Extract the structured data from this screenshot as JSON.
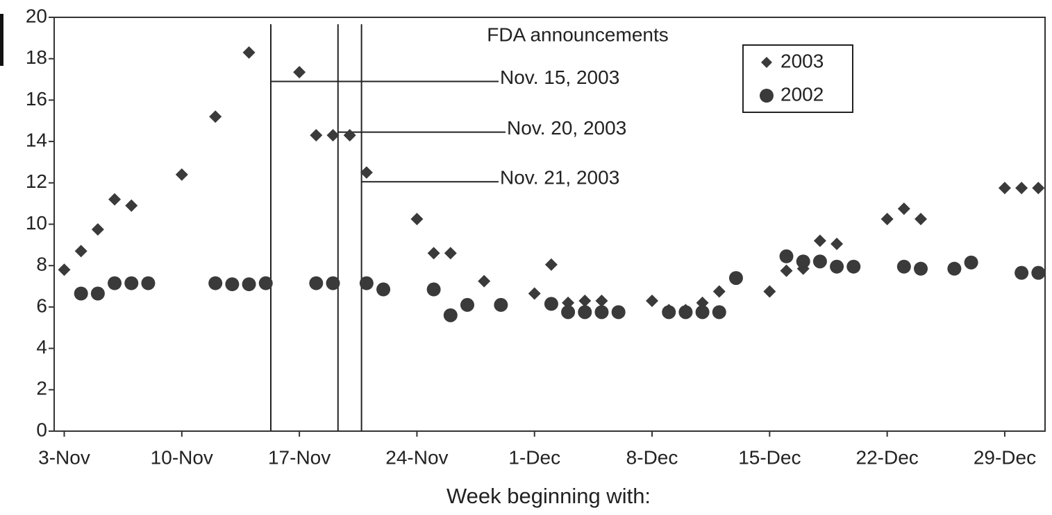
{
  "chart_data": {
    "type": "scatter",
    "xlabel": "Week beginning with:",
    "annotation_title": "FDA announcements",
    "annotations": [
      {
        "label": "Nov. 15, 2003",
        "x": 12.3,
        "y": 16.9
      },
      {
        "label": "Nov. 20, 2003",
        "x": 16.3,
        "y": 14.45
      },
      {
        "label": "Nov. 21, 2003",
        "x": 17.7,
        "y": 12.05
      }
    ],
    "series": [
      {
        "name": "2003",
        "marker": "diamond",
        "color": "#3a3a3a",
        "x": [
          0,
          1,
          2,
          3,
          4,
          7,
          9,
          11,
          14,
          15,
          16,
          17,
          18,
          21,
          22,
          23,
          25,
          28,
          29,
          30,
          31,
          32,
          35,
          36,
          37,
          38,
          39,
          42,
          43,
          44,
          45,
          46,
          49,
          50,
          51,
          56,
          57,
          58
        ],
        "values": [
          7.8,
          8.7,
          9.75,
          11.2,
          10.9,
          12.4,
          15.2,
          18.3,
          17.35,
          14.3,
          14.3,
          14.3,
          12.5,
          10.25,
          8.6,
          8.6,
          7.25,
          6.65,
          8.05,
          6.2,
          6.3,
          6.3,
          6.3,
          5.85,
          5.85,
          6.2,
          6.75,
          6.75,
          7.75,
          7.85,
          9.2,
          9.05,
          10.25,
          10.75,
          10.25,
          11.75,
          11.75,
          11.75
        ]
      },
      {
        "name": "2002",
        "marker": "circle",
        "color": "#3a3a3a",
        "x": [
          1,
          2,
          3,
          4,
          5,
          9,
          10,
          11,
          12,
          15,
          16,
          18,
          19,
          22,
          23,
          24,
          26,
          29,
          30,
          31,
          32,
          33,
          36,
          37,
          38,
          39,
          40,
          43,
          44,
          45,
          46,
          47,
          50,
          51,
          53,
          54,
          57,
          58
        ],
        "values": [
          6.65,
          6.65,
          7.15,
          7.15,
          7.15,
          7.15,
          7.1,
          7.1,
          7.15,
          7.15,
          7.15,
          7.15,
          6.85,
          6.85,
          5.6,
          6.1,
          6.1,
          6.15,
          5.75,
          5.75,
          5.75,
          5.75,
          5.75,
          5.75,
          5.75,
          5.75,
          7.4,
          8.45,
          8.2,
          8.2,
          7.95,
          7.95,
          7.95,
          7.85,
          7.85,
          8.15,
          7.65,
          7.65
        ]
      }
    ],
    "xlim": [
      -0.6,
      58.4
    ],
    "xticks": [
      {
        "value": 0,
        "label": "3-Nov"
      },
      {
        "value": 7,
        "label": "10-Nov"
      },
      {
        "value": 14,
        "label": "17-Nov"
      },
      {
        "value": 21,
        "label": "24-Nov"
      },
      {
        "value": 28,
        "label": "1-Dec"
      },
      {
        "value": 35,
        "label": "8-Dec"
      },
      {
        "value": 42,
        "label": "15-Dec"
      },
      {
        "value": 49,
        "label": "22-Dec"
      },
      {
        "value": 56,
        "label": "29-Dec"
      }
    ],
    "ylim": [
      0,
      20
    ],
    "yticks": [
      0,
      2,
      4,
      6,
      8,
      10,
      12,
      14,
      16,
      18,
      20
    ],
    "legend": "upper right"
  }
}
